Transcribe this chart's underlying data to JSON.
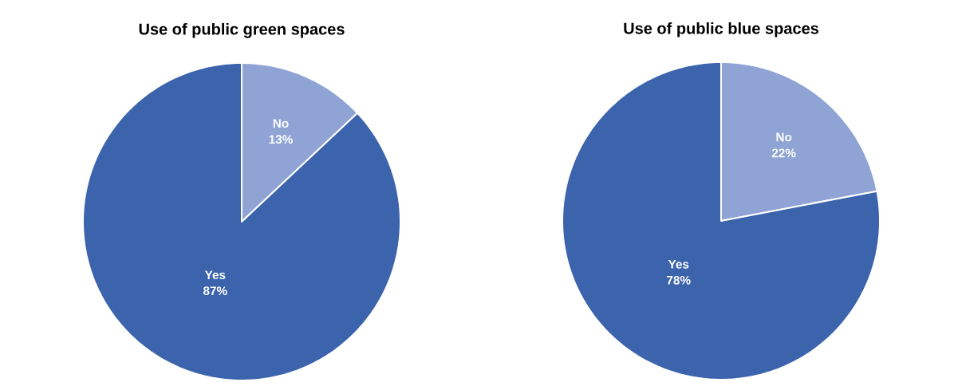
{
  "chart_data": [
    {
      "type": "pie",
      "title": "Use of public green spaces",
      "categories": [
        "No",
        "Yes"
      ],
      "values": [
        13,
        87
      ],
      "colors": [
        "#8fa3d5",
        "#3c64ad"
      ],
      "value_labels": [
        "13%",
        "87%"
      ]
    },
    {
      "type": "pie",
      "title": "Use of public blue spaces",
      "categories": [
        "No",
        "Yes"
      ],
      "values": [
        22,
        78
      ],
      "colors": [
        "#8fa3d5",
        "#3c64ad"
      ],
      "value_labels": [
        "22%",
        "78%"
      ]
    }
  ]
}
